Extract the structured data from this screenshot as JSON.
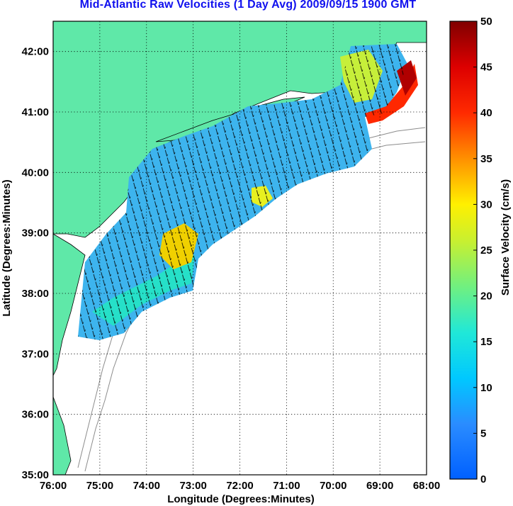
{
  "title": "Mid-Atlantic Raw Velocities (1 Day Avg) 2009/09/15 1900 GMT",
  "map": {
    "xlabel": "Longitude (Degrees:Minutes)",
    "ylabel": "Latitude (Degrees:Minutes)",
    "xlim": [
      -76,
      -68
    ],
    "ylim": [
      35,
      42.5
    ],
    "x_ticks": [
      "76:00",
      "75:00",
      "74:00",
      "73:00",
      "72:00",
      "71:00",
      "70:00",
      "69:00",
      "68:00"
    ],
    "y_ticks": [
      "35:00",
      "36:00",
      "37:00",
      "38:00",
      "39:00",
      "40:00",
      "41:00",
      "42:00"
    ],
    "grid": "dotted",
    "land_color": "#5fe8a8",
    "ocean_color": "#ffffff",
    "contour_color": "#8c8c8c"
  },
  "colorbar": {
    "label": "Surface Velocity (cm/s)",
    "min": 0,
    "max": 50,
    "ticks": [
      "0",
      "5",
      "10",
      "15",
      "20",
      "25",
      "30",
      "35",
      "40",
      "45",
      "50"
    ],
    "colormap": "jet"
  }
}
